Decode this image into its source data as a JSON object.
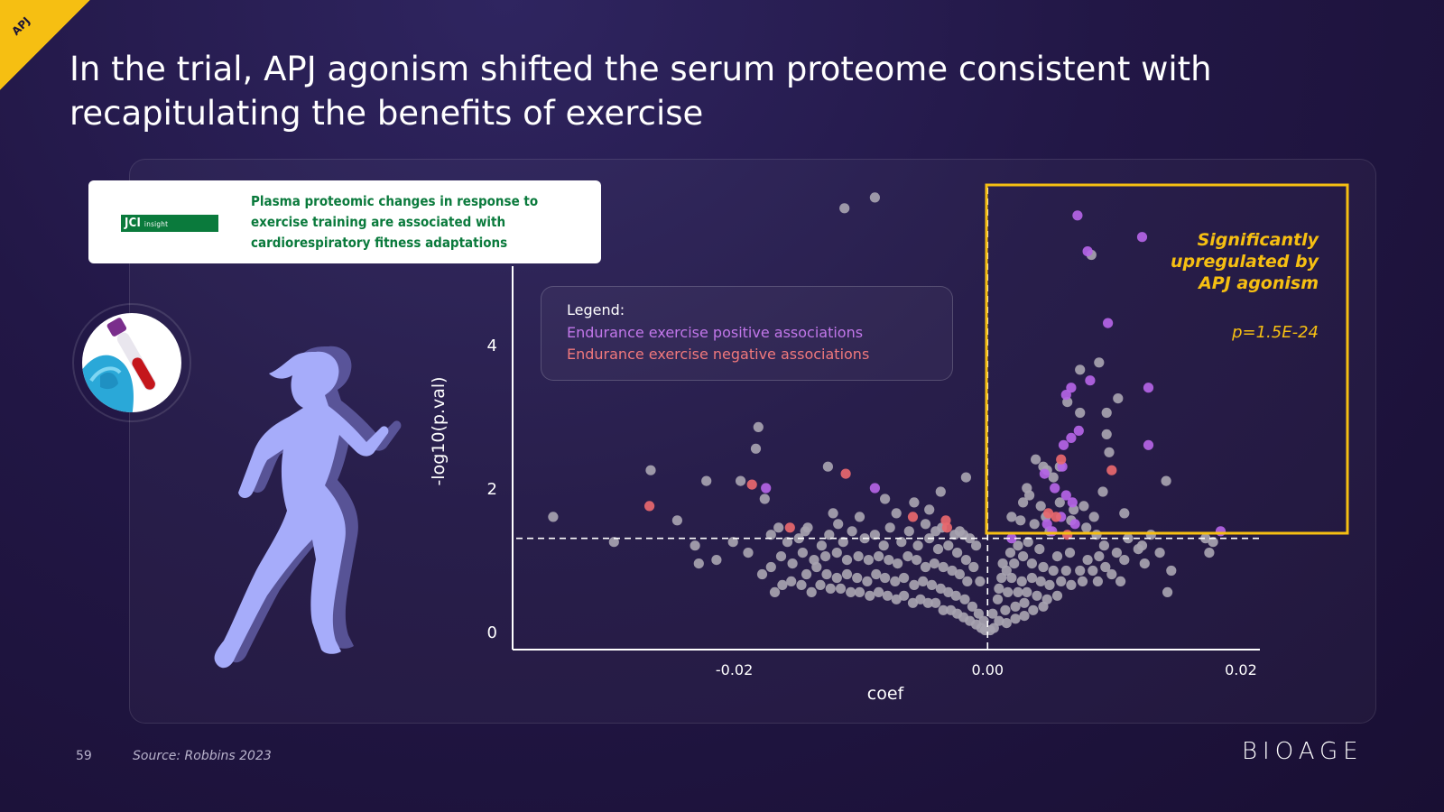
{
  "corner_tag": "APJ",
  "title": "In the trial, APJ agonism shifted the serum proteome consistent with recapitulating the benefits of exercise",
  "journal": {
    "logo_main": "JCI",
    "logo_sub": "insight",
    "paper_title": "Plasma proteomic changes in response to exercise training are associated with cardiorespiratory fitness adaptations"
  },
  "legend": {
    "title": "Legend:",
    "positive": "Endurance exercise positive associations",
    "negative": "Endurance exercise negative associations"
  },
  "annotation": {
    "line1": "Significantly",
    "line2": "upregulated by",
    "line3": "APJ agonism",
    "pvalue": "p=1.5E-24"
  },
  "footer": {
    "page_number": "59",
    "source": "Source: Robbins 2023",
    "brand": "BIOAGE"
  },
  "colors": {
    "background": "#1d1338",
    "accent_yellow": "#f6bf12",
    "point_gray": "#a7a3b0",
    "point_positive": "#b464e6",
    "point_negative": "#e8686e",
    "runner": "#a6acfa"
  },
  "icons": {
    "tube": "blood-tube-icon",
    "runner": "runner-silhouette-icon"
  },
  "chart_data": {
    "type": "scatter",
    "title": "",
    "xlabel": "coef",
    "ylabel": "-log10(p.val)",
    "xlim": [
      -0.0375,
      0.0215
    ],
    "ylim": [
      -0.25,
      6.25
    ],
    "xticks": [
      -0.02,
      0.0,
      0.02
    ],
    "xtick_labels": [
      "-0.02",
      "0.00",
      "0.02"
    ],
    "yticks": [
      0,
      2,
      4
    ],
    "ytick_labels": [
      "0",
      "2",
      "4"
    ],
    "threshold_y": 1.3,
    "threshold_x": 0.0,
    "highlight_region": {
      "x": [
        0.0,
        0.029
      ],
      "y": [
        1.3,
        6.3
      ],
      "label": "Significantly upregulated by APJ agonism"
    },
    "series": [
      {
        "name": "Endurance exercise positive associations",
        "color": "#b464e6",
        "points": [
          [
            0.0071,
            5.8
          ],
          [
            0.0122,
            5.5
          ],
          [
            0.0079,
            5.3
          ],
          [
            0.0095,
            4.3
          ],
          [
            0.0127,
            3.4
          ],
          [
            0.0062,
            3.3
          ],
          [
            0.0066,
            3.4
          ],
          [
            0.0081,
            3.5
          ],
          [
            0.0072,
            2.8
          ],
          [
            0.0127,
            2.6
          ],
          [
            0.006,
            2.6
          ],
          [
            0.0066,
            2.7
          ],
          [
            0.0045,
            2.2
          ],
          [
            0.0059,
            2.3
          ],
          [
            0.0053,
            2.0
          ],
          [
            0.0062,
            1.9
          ],
          [
            0.0067,
            1.8
          ],
          [
            0.0058,
            1.6
          ],
          [
            0.0051,
            1.4
          ],
          [
            0.0047,
            1.5
          ],
          [
            0.0069,
            1.5
          ],
          [
            0.0184,
            1.4
          ],
          [
            0.0019,
            1.3
          ],
          [
            -0.0089,
            2.0
          ],
          [
            -0.0175,
            2.0
          ]
        ]
      },
      {
        "name": "Endurance exercise negative associations",
        "color": "#e8686e",
        "points": [
          [
            -0.0267,
            1.75
          ],
          [
            -0.0186,
            2.05
          ],
          [
            -0.0156,
            1.45
          ],
          [
            -0.0112,
            2.2
          ],
          [
            -0.0059,
            1.6
          ],
          [
            -0.0033,
            1.55
          ],
          [
            -0.0032,
            1.45
          ],
          [
            0.0048,
            1.65
          ],
          [
            0.0054,
            1.6
          ],
          [
            0.0098,
            2.25
          ],
          [
            0.0063,
            1.35
          ],
          [
            0.0058,
            2.4
          ]
        ]
      },
      {
        "name": "",
        "color": "#a7a3b0",
        "points": [
          [
            -0.0113,
            5.9
          ],
          [
            -0.0089,
            6.05
          ],
          [
            -0.0181,
            2.85
          ],
          [
            -0.0183,
            2.55
          ],
          [
            -0.0266,
            2.25
          ],
          [
            -0.0343,
            1.6
          ],
          [
            -0.0295,
            1.25
          ],
          [
            -0.0245,
            1.55
          ],
          [
            -0.0222,
            2.1
          ],
          [
            -0.0231,
            1.2
          ],
          [
            -0.0195,
            2.1
          ],
          [
            -0.0176,
            1.85
          ],
          [
            -0.0142,
            1.45
          ],
          [
            -0.0126,
            2.3
          ],
          [
            -0.0122,
            1.65
          ],
          [
            -0.0101,
            1.6
          ],
          [
            -0.0081,
            1.85
          ],
          [
            -0.0072,
            1.65
          ],
          [
            -0.0058,
            1.8
          ],
          [
            -0.0046,
            1.7
          ],
          [
            -0.0037,
            1.95
          ],
          [
            -0.0036,
            1.45
          ],
          [
            -0.0017,
            2.15
          ],
          [
            -0.0022,
            1.4
          ],
          [
            0.0082,
            5.25
          ],
          [
            0.0088,
            3.75
          ],
          [
            0.0073,
            3.65
          ],
          [
            0.0103,
            3.25
          ],
          [
            0.0094,
            3.05
          ],
          [
            0.0063,
            3.2
          ],
          [
            0.0073,
            3.05
          ],
          [
            0.0094,
            2.75
          ],
          [
            0.0057,
            2.3
          ],
          [
            0.0047,
            2.25
          ],
          [
            0.0096,
            2.5
          ],
          [
            0.0091,
            1.95
          ],
          [
            0.0141,
            2.1
          ],
          [
            0.0108,
            1.65
          ],
          [
            0.0172,
            1.3
          ],
          [
            0.0175,
            1.1
          ],
          [
            0.0178,
            1.25
          ],
          [
            0.0145,
            0.85
          ],
          [
            0.0142,
            0.55
          ],
          [
            0.0122,
            1.2
          ],
          [
            0.0124,
            0.95
          ],
          [
            0.0108,
            1.0
          ],
          [
            0.0105,
            0.7
          ],
          [
            0.0044,
            2.3
          ],
          [
            0.0052,
            2.15
          ],
          [
            0.0033,
            1.9
          ],
          [
            0.0028,
            1.8
          ],
          [
            0.0031,
            2.0
          ],
          [
            0.0038,
            2.4
          ],
          [
            0.0042,
            1.75
          ],
          [
            0.0049,
            1.4
          ],
          [
            0.0057,
            1.8
          ],
          [
            0.0068,
            1.7
          ],
          [
            0.0076,
            1.75
          ],
          [
            0.0084,
            1.6
          ],
          [
            0.0092,
            1.2
          ],
          [
            0.0088,
            1.05
          ],
          [
            0.0079,
            1.0
          ],
          [
            0.0102,
            1.1
          ],
          [
            0.0065,
            1.1
          ],
          [
            0.0055,
            1.05
          ],
          [
            0.0041,
            1.15
          ],
          [
            0.0032,
            1.25
          ],
          [
            0.0024,
            1.2
          ],
          [
            0.0018,
            1.1
          ],
          [
            0.0012,
            0.95
          ],
          [
            0.0015,
            0.85
          ],
          [
            0.0021,
            0.95
          ],
          [
            0.0028,
            1.05
          ],
          [
            0.0035,
            0.95
          ],
          [
            0.0044,
            0.9
          ],
          [
            0.0052,
            0.85
          ],
          [
            0.0062,
            0.85
          ],
          [
            0.0073,
            0.85
          ],
          [
            0.0083,
            0.85
          ],
          [
            0.0093,
            0.9
          ],
          [
            0.0098,
            0.8
          ],
          [
            0.0087,
            0.7
          ],
          [
            0.0075,
            0.7
          ],
          [
            0.0066,
            0.65
          ],
          [
            0.0058,
            0.7
          ],
          [
            0.0049,
            0.65
          ],
          [
            0.0042,
            0.7
          ],
          [
            0.0035,
            0.75
          ],
          [
            0.0027,
            0.7
          ],
          [
            0.0019,
            0.75
          ],
          [
            0.0011,
            0.75
          ],
          [
            0.0009,
            0.6
          ],
          [
            0.0016,
            0.55
          ],
          [
            0.0024,
            0.55
          ],
          [
            0.0031,
            0.55
          ],
          [
            0.0039,
            0.5
          ],
          [
            0.0047,
            0.45
          ],
          [
            0.0055,
            0.5
          ],
          [
            0.0044,
            0.35
          ],
          [
            0.0036,
            0.3
          ],
          [
            0.0029,
            0.4
          ],
          [
            0.0022,
            0.35
          ],
          [
            0.0014,
            0.3
          ],
          [
            0.0008,
            0.45
          ],
          [
            0.0004,
            0.25
          ],
          [
            0.0009,
            0.15
          ],
          [
            0.0015,
            0.12
          ],
          [
            0.0022,
            0.18
          ],
          [
            0.0029,
            0.22
          ],
          [
            0.0005,
            0.05
          ],
          [
            0.0002,
            0.02
          ],
          [
            -0.0002,
            0.02
          ],
          [
            -0.0005,
            0.05
          ],
          [
            -0.0009,
            0.1
          ],
          [
            -0.0014,
            0.15
          ],
          [
            -0.0019,
            0.2
          ],
          [
            -0.0024,
            0.25
          ],
          [
            -0.0029,
            0.3
          ],
          [
            -0.0035,
            0.3
          ],
          [
            -0.0041,
            0.4
          ],
          [
            -0.0047,
            0.4
          ],
          [
            -0.0053,
            0.45
          ],
          [
            -0.0059,
            0.4
          ],
          [
            -0.0066,
            0.5
          ],
          [
            -0.0072,
            0.45
          ],
          [
            -0.0079,
            0.5
          ],
          [
            -0.0086,
            0.55
          ],
          [
            -0.0093,
            0.5
          ],
          [
            -0.0101,
            0.55
          ],
          [
            -0.0108,
            0.55
          ],
          [
            -0.0116,
            0.6
          ],
          [
            -0.0124,
            0.6
          ],
          [
            -0.0132,
            0.65
          ],
          [
            -0.0139,
            0.55
          ],
          [
            -0.0147,
            0.65
          ],
          [
            -0.0155,
            0.7
          ],
          [
            -0.0162,
            0.65
          ],
          [
            -0.0168,
            0.55
          ],
          [
            -0.0143,
            0.8
          ],
          [
            -0.0135,
            0.9
          ],
          [
            -0.0127,
            0.8
          ],
          [
            -0.0119,
            0.75
          ],
          [
            -0.0111,
            0.8
          ],
          [
            -0.0103,
            0.75
          ],
          [
            -0.0095,
            0.7
          ],
          [
            -0.0088,
            0.8
          ],
          [
            -0.0081,
            0.75
          ],
          [
            -0.0073,
            0.7
          ],
          [
            -0.0066,
            0.75
          ],
          [
            -0.0058,
            0.65
          ],
          [
            -0.0051,
            0.7
          ],
          [
            -0.0044,
            0.65
          ],
          [
            -0.0037,
            0.6
          ],
          [
            -0.0031,
            0.55
          ],
          [
            -0.0025,
            0.5
          ],
          [
            -0.0018,
            0.45
          ],
          [
            -0.0012,
            0.35
          ],
          [
            -0.0007,
            0.25
          ],
          [
            -0.0003,
            0.15
          ],
          [
            -0.0016,
            0.7
          ],
          [
            -0.0022,
            0.8
          ],
          [
            -0.0028,
            0.85
          ],
          [
            -0.0035,
            0.9
          ],
          [
            -0.0042,
            0.95
          ],
          [
            -0.0049,
            0.9
          ],
          [
            -0.0056,
            1.0
          ],
          [
            -0.0063,
            1.05
          ],
          [
            -0.0071,
            0.95
          ],
          [
            -0.0078,
            1.0
          ],
          [
            -0.0086,
            1.05
          ],
          [
            -0.0094,
            1.0
          ],
          [
            -0.0102,
            1.05
          ],
          [
            -0.0111,
            1.0
          ],
          [
            -0.0119,
            1.1
          ],
          [
            -0.0128,
            1.05
          ],
          [
            -0.0137,
            1.0
          ],
          [
            -0.0146,
            1.1
          ],
          [
            -0.0154,
            0.95
          ],
          [
            -0.0163,
            1.05
          ],
          [
            -0.0171,
            0.9
          ],
          [
            -0.0178,
            0.8
          ],
          [
            -0.0158,
            1.25
          ],
          [
            -0.0149,
            1.3
          ],
          [
            -0.0131,
            1.2
          ],
          [
            -0.0114,
            1.25
          ],
          [
            -0.0097,
            1.3
          ],
          [
            -0.0082,
            1.2
          ],
          [
            -0.0068,
            1.25
          ],
          [
            -0.0055,
            1.2
          ],
          [
            -0.0046,
            1.3
          ],
          [
            -0.0039,
            1.15
          ],
          [
            -0.0031,
            1.2
          ],
          [
            -0.0024,
            1.1
          ],
          [
            -0.0017,
            1.0
          ],
          [
            -0.0011,
            0.9
          ],
          [
            -0.0006,
            0.7
          ],
          [
            -0.0009,
            1.2
          ],
          [
            -0.0014,
            1.3
          ],
          [
            -0.0189,
            1.1
          ],
          [
            -0.0201,
            1.25
          ],
          [
            -0.0214,
            1.0
          ],
          [
            -0.0228,
            0.95
          ],
          [
            -0.0165,
            1.45
          ],
          [
            -0.0118,
            1.5
          ],
          [
            -0.0077,
            1.45
          ],
          [
            -0.0049,
            1.5
          ],
          [
            -0.0026,
            1.35
          ],
          [
            -0.0089,
            1.35
          ],
          [
            -0.0107,
            1.4
          ],
          [
            -0.0125,
            1.35
          ],
          [
            -0.0144,
            1.4
          ],
          [
            -0.0171,
            1.35
          ],
          [
            -0.0062,
            1.4
          ],
          [
            -0.0041,
            1.4
          ],
          [
            -0.0019,
            1.35
          ],
          [
            0.0046,
            1.6
          ],
          [
            0.0066,
            1.55
          ],
          [
            0.0078,
            1.45
          ],
          [
            0.0086,
            1.35
          ],
          [
            0.0037,
            1.5
          ],
          [
            0.0026,
            1.55
          ],
          [
            0.0019,
            1.6
          ],
          [
            0.0111,
            1.3
          ],
          [
            0.0119,
            1.15
          ],
          [
            0.0129,
            1.35
          ],
          [
            0.0136,
            1.1
          ]
        ]
      }
    ]
  }
}
